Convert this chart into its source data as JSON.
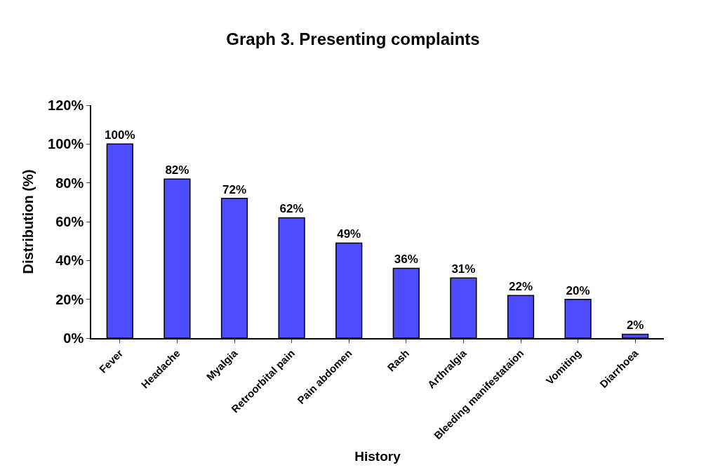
{
  "chart_data": {
    "type": "bar",
    "title": "Graph 3. Presenting complaints",
    "xlabel": "History",
    "ylabel": "Distribution (%)",
    "categories": [
      "Fever",
      "Headache",
      "Myalgia",
      "Retroorbital pain",
      "Pain abdomen",
      "Rash",
      "Arthralgia",
      "Bleeding manifestataion",
      "Vomiting",
      "Diarrhoea"
    ],
    "values": [
      100,
      82,
      72,
      62,
      49,
      36,
      31,
      22,
      20,
      2
    ],
    "value_labels": [
      "100%",
      "82%",
      "72%",
      "62%",
      "49%",
      "36%",
      "31%",
      "22%",
      "20%",
      "2%"
    ],
    "color": "#4d4dff",
    "ylim": [
      0,
      120
    ],
    "yticks": [
      {
        "value": 0,
        "label": "0%"
      },
      {
        "value": 20,
        "label": "20%"
      },
      {
        "value": 40,
        "label": "40%"
      },
      {
        "value": 60,
        "label": "60%"
      },
      {
        "value": 80,
        "label": "80%"
      },
      {
        "value": 100,
        "label": "100%"
      },
      {
        "value": 120,
        "label": "120%"
      }
    ],
    "legend": false
  }
}
